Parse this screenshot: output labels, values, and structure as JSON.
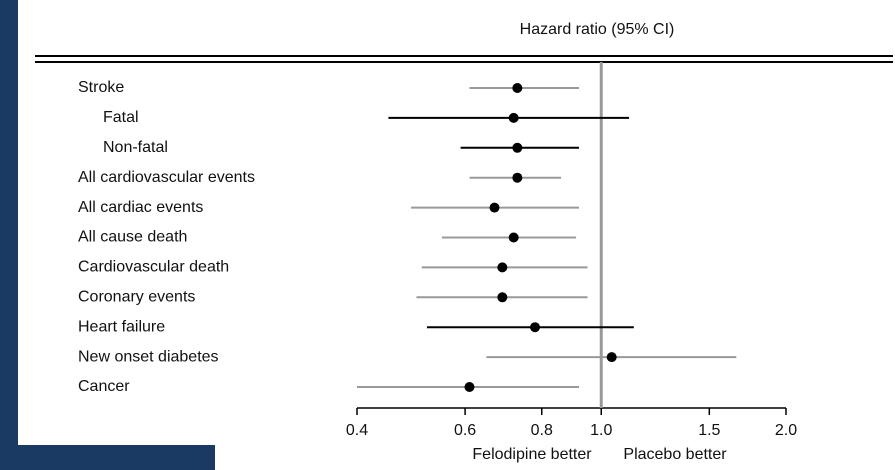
{
  "chart_data": {
    "type": "forest",
    "title": "Hazard ratio (95% CI)",
    "categories": [
      "Stroke",
      "Fatal",
      "Non-fatal",
      "All cardiovascular events",
      "All cardiac events",
      "All cause death",
      "Cardiovascular death",
      "Coronary events",
      "Heart failure",
      "New onset diabetes",
      "Cancer"
    ],
    "level": [
      0,
      1,
      1,
      0,
      0,
      0,
      0,
      0,
      0,
      0,
      0
    ],
    "estimates": [
      0.73,
      0.72,
      0.73,
      0.73,
      0.67,
      0.72,
      0.69,
      0.69,
      0.78,
      1.04,
      0.61
    ],
    "lower": [
      0.61,
      0.45,
      0.59,
      0.61,
      0.49,
      0.55,
      0.51,
      0.5,
      0.52,
      0.65,
      0.4
    ],
    "upper": [
      0.92,
      1.11,
      0.92,
      0.86,
      0.92,
      0.91,
      0.95,
      0.95,
      1.13,
      1.66,
      0.92
    ],
    "ci_colors": [
      "#999999",
      "#000000",
      "#000000",
      "#999999",
      "#999999",
      "#999999",
      "#999999",
      "#999999",
      "#000000",
      "#999999",
      "#999999"
    ],
    "point_color": "#000000",
    "xlim": [
      0.4,
      2.0
    ],
    "xscale": "log",
    "xticks": [
      0.4,
      0.6,
      0.8,
      {
        "value": 1,
        "label": "1.0"
      },
      1.5,
      {
        "value": 2,
        "label": "2.0"
      }
    ],
    "reference_line": 1,
    "annotations": [
      "Felodipine better",
      "Placebo better"
    ]
  }
}
